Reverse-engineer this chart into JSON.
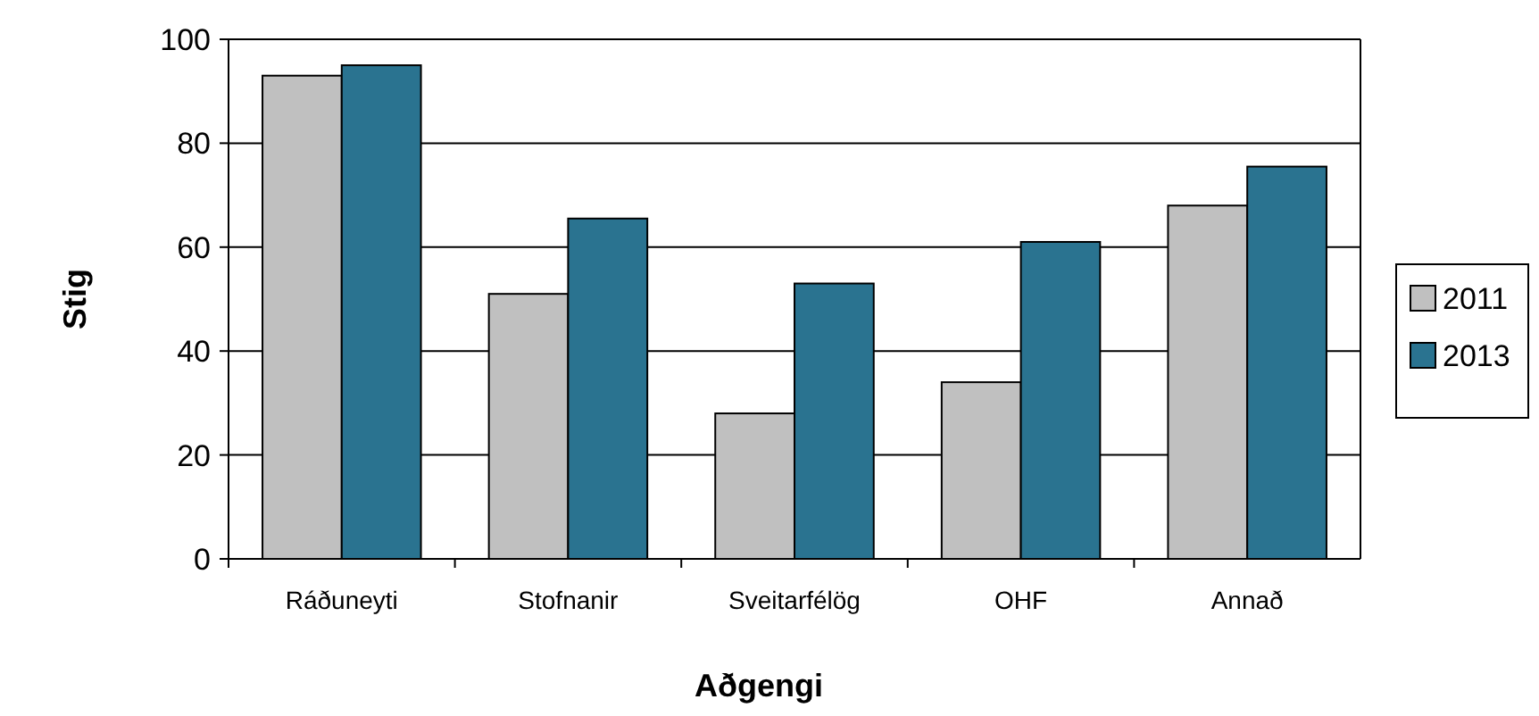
{
  "chart_data": {
    "type": "bar",
    "xlabel": "Aðgengi",
    "ylabel": "Stig",
    "categories": [
      "Ráðuneyti",
      "Stofnanir",
      "Sveitarfélög",
      "OHF",
      "Annað"
    ],
    "series": [
      {
        "name": "2011",
        "color": "#c0c0c0",
        "values": [
          93,
          51,
          28,
          34,
          68
        ]
      },
      {
        "name": "2013",
        "color": "#2a7390",
        "values": [
          95,
          65.5,
          53,
          61,
          75.5
        ]
      }
    ],
    "ylim": [
      0,
      100
    ],
    "yticks": [
      0,
      20,
      40,
      60,
      80,
      100
    ],
    "grid": "y",
    "legend": "right"
  }
}
